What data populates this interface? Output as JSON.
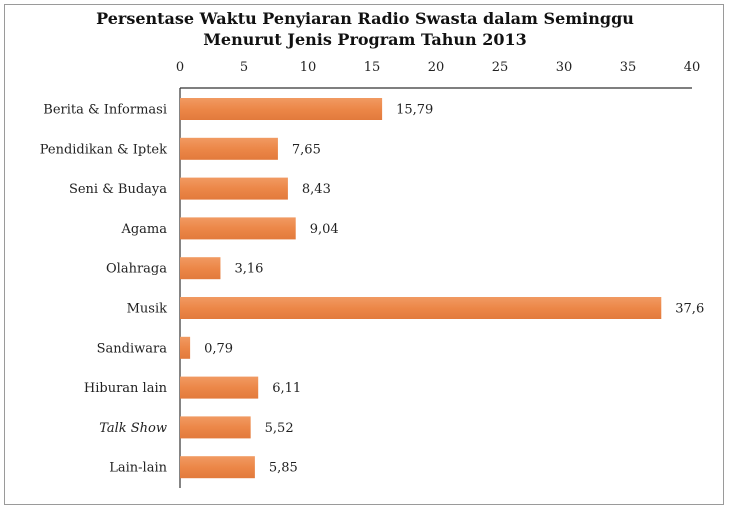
{
  "chart_data": {
    "type": "bar",
    "orientation": "horizontal",
    "title": "Persentase Waktu Penyiaran Radio Swasta dalam Seminggu",
    "subtitle": "Menurut Jenis Program Tahun 2013",
    "xlim": [
      0,
      40
    ],
    "xticks": [
      "0",
      "5",
      "10",
      "15",
      "20",
      "25",
      "30",
      "35",
      "40"
    ],
    "axis_position": "top",
    "grid": false,
    "categories": [
      "Berita & Informasi",
      "Pendidikan & Iptek",
      "Seni & Budaya",
      "Agama",
      "Olahraga",
      "Musik",
      "Sandiwara",
      "Hiburan lain",
      "Talk Show",
      "Lain-lain"
    ],
    "italic_categories": [
      "Talk Show"
    ],
    "values": [
      15.79,
      7.65,
      8.43,
      9.04,
      3.16,
      37.6,
      0.79,
      6.11,
      5.52,
      5.85
    ],
    "value_labels": [
      "15,79",
      "7,65",
      "8,43",
      "9,04",
      "3,16",
      "37,6",
      "0,79",
      "6,11",
      "5,52",
      "5,85"
    ],
    "bar_color": "#ee8a4c",
    "bar_color_light": "#f4a878"
  }
}
